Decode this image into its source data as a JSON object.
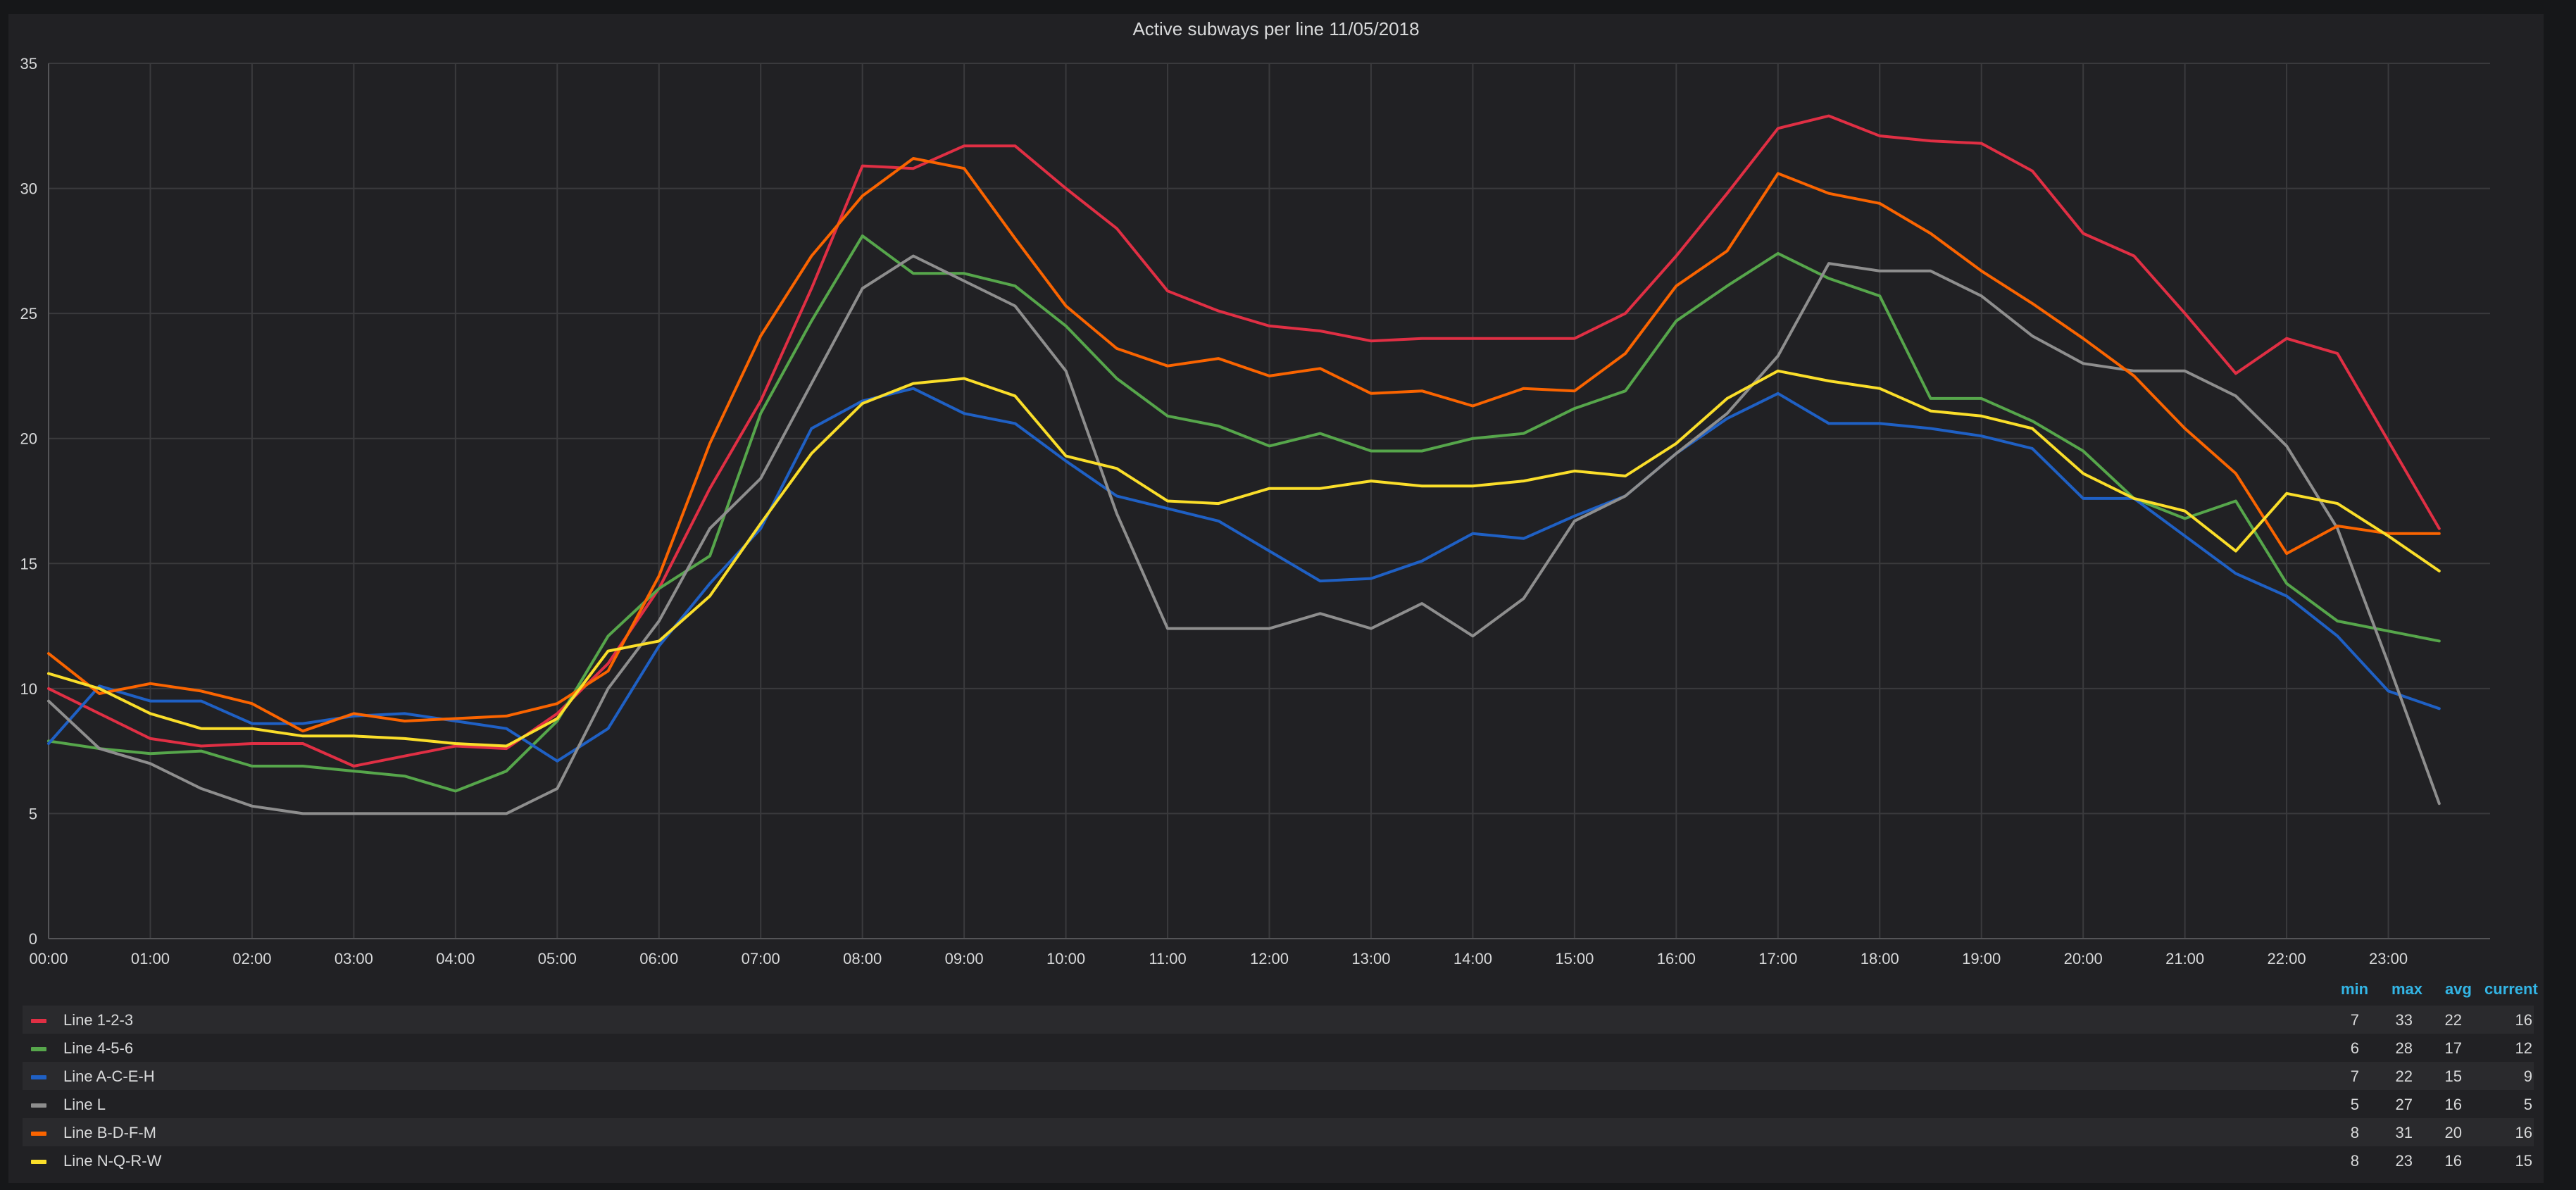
{
  "chart_data": {
    "type": "line",
    "title": "Active subways per line 11/05/2018",
    "xlabel": "",
    "ylabel": "",
    "ylim": [
      0,
      35
    ],
    "yticks": [
      0,
      5,
      10,
      15,
      20,
      25,
      30,
      35
    ],
    "x": [
      0,
      0.5,
      1,
      1.5,
      2,
      2.5,
      3,
      3.5,
      4,
      4.5,
      5,
      5.5,
      6,
      6.5,
      7,
      7.5,
      8,
      8.5,
      9,
      9.5,
      10,
      10.5,
      11,
      11.5,
      12,
      12.5,
      13,
      13.5,
      14,
      14.5,
      15,
      15.5,
      16,
      16.5,
      17,
      17.5,
      18,
      18.5,
      19,
      19.5,
      20,
      20.5,
      21,
      21.5,
      22,
      22.5,
      23,
      23.5
    ],
    "xticks": [
      "00:00",
      "01:00",
      "02:00",
      "03:00",
      "04:00",
      "05:00",
      "06:00",
      "07:00",
      "08:00",
      "09:00",
      "10:00",
      "11:00",
      "12:00",
      "13:00",
      "14:00",
      "15:00",
      "16:00",
      "17:00",
      "18:00",
      "19:00",
      "20:00",
      "21:00",
      "22:00",
      "23:00"
    ],
    "legend_headers": [
      "min",
      "max",
      "avg",
      "current"
    ],
    "series": [
      {
        "name": "Line 1-2-3",
        "color": "#e02f44",
        "min": "7",
        "max": "33",
        "avg": "22",
        "current": "16",
        "values": [
          10,
          9,
          8,
          7.7,
          7.8,
          7.8,
          6.9,
          7.3,
          7.7,
          7.6,
          9,
          11,
          14,
          18,
          21.5,
          26,
          30.9,
          30.8,
          31.7,
          31.7,
          30,
          28.4,
          25.9,
          25.1,
          24.5,
          24.3,
          23.9,
          24,
          24,
          24,
          24,
          25,
          27.3,
          29.8,
          32.4,
          32.9,
          32.1,
          31.9,
          31.8,
          30.7,
          28.2,
          27.3,
          25,
          22.6,
          24,
          23.4,
          19.9,
          16.4
        ]
      },
      {
        "name": "Line 4-5-6",
        "color": "#56a64b",
        "min": "6",
        "max": "28",
        "avg": "17",
        "current": "12",
        "values": [
          7.9,
          7.6,
          7.4,
          7.5,
          6.9,
          6.9,
          6.7,
          6.5,
          5.9,
          6.7,
          8.7,
          12.1,
          14,
          15.3,
          21,
          24.7,
          28.1,
          26.6,
          26.6,
          26.1,
          24.5,
          22.4,
          20.9,
          20.5,
          19.7,
          20.2,
          19.5,
          19.5,
          20,
          20.2,
          21.2,
          21.9,
          24.7,
          26.1,
          27.4,
          26.4,
          25.7,
          21.6,
          21.6,
          20.7,
          19.5,
          17.6,
          16.8,
          17.5,
          14.2,
          12.7,
          12.3,
          11.9
        ]
      },
      {
        "name": "Line A-C-E-H",
        "color": "#1f60c4",
        "min": "7",
        "max": "22",
        "avg": "15",
        "current": "9",
        "values": [
          7.8,
          10.1,
          9.5,
          9.5,
          8.6,
          8.6,
          8.9,
          9,
          8.7,
          8.4,
          7.1,
          8.4,
          11.7,
          14.2,
          16.4,
          20.4,
          21.5,
          22,
          21,
          20.6,
          19.1,
          17.7,
          17.2,
          16.7,
          15.5,
          14.3,
          14.4,
          15.1,
          16.2,
          16,
          16.9,
          17.7,
          19.4,
          20.8,
          21.8,
          20.6,
          20.6,
          20.4,
          20.1,
          19.6,
          17.6,
          17.6,
          16.1,
          14.6,
          13.7,
          12.1,
          9.9,
          9.2
        ]
      },
      {
        "name": "Line L",
        "color": "#8e8e8e",
        "min": "5",
        "max": "27",
        "avg": "16",
        "current": "5",
        "values": [
          9.5,
          7.6,
          7,
          6,
          5.3,
          5,
          5,
          5,
          5,
          5,
          6,
          10,
          12.7,
          16.4,
          18.4,
          22.2,
          26,
          27.3,
          26.3,
          25.3,
          22.7,
          17,
          12.4,
          12.4,
          12.4,
          13,
          12.4,
          13.4,
          12.1,
          13.6,
          16.7,
          17.7,
          19.4,
          21,
          23.3,
          27,
          26.7,
          26.7,
          25.7,
          24.1,
          23,
          22.7,
          22.7,
          21.7,
          19.7,
          16.4,
          11,
          5.4
        ]
      },
      {
        "name": "Line B-D-F-M",
        "color": "#fa6400",
        "min": "8",
        "max": "31",
        "avg": "20",
        "current": "16",
        "values": [
          11.4,
          9.8,
          10.2,
          9.9,
          9.4,
          8.3,
          9,
          8.7,
          8.8,
          8.9,
          9.4,
          10.7,
          14.5,
          19.8,
          24.1,
          27.3,
          29.7,
          31.2,
          30.8,
          28,
          25.3,
          23.6,
          22.9,
          23.2,
          22.5,
          22.8,
          21.8,
          21.9,
          21.3,
          22,
          21.9,
          23.4,
          26.1,
          27.5,
          30.6,
          29.8,
          29.4,
          28.2,
          26.7,
          25.4,
          24,
          22.5,
          20.4,
          18.6,
          15.4,
          16.5,
          16.2,
          16.2
        ]
      },
      {
        "name": "Line N-Q-R-W",
        "color": "#fade2a",
        "min": "8",
        "max": "23",
        "avg": "16",
        "current": "15",
        "values": [
          10.6,
          10,
          9,
          8.4,
          8.4,
          8.1,
          8.1,
          8,
          7.8,
          7.7,
          8.8,
          11.5,
          11.9,
          13.7,
          16.6,
          19.4,
          21.4,
          22.2,
          22.4,
          21.7,
          19.3,
          18.8,
          17.5,
          17.4,
          18,
          18,
          18.3,
          18.1,
          18.1,
          18.3,
          18.7,
          18.5,
          19.8,
          21.6,
          22.7,
          22.3,
          22,
          21.1,
          20.9,
          20.4,
          18.6,
          17.6,
          17.1,
          15.5,
          17.8,
          17.4,
          16.1,
          14.7
        ]
      }
    ]
  }
}
